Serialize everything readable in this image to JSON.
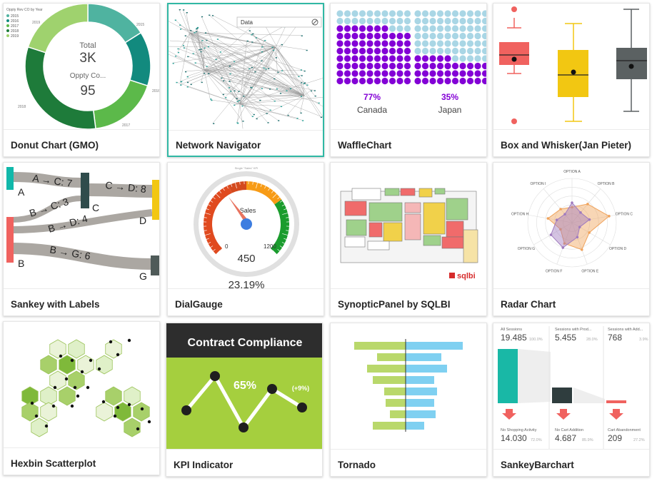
{
  "tiles": [
    {
      "label": "Donut Chart (GMO)"
    },
    {
      "label": "Network Navigator"
    },
    {
      "label": "WaffleChart"
    },
    {
      "label": "Box and Whisker(Jan Pieter)"
    },
    {
      "label": "Sankey with Labels"
    },
    {
      "label": "DialGauge"
    },
    {
      "label": "SynopticPanel by SQLBI"
    },
    {
      "label": "Radar Chart"
    },
    {
      "label": "Hexbin Scatterplot"
    },
    {
      "label": "KPI Indicator"
    },
    {
      "label": "Tornado"
    },
    {
      "label": "SankeyBarchart"
    }
  ],
  "donut": {
    "caption": "Oppty Rev CO by Year",
    "legend": [
      "2015",
      "2016",
      "2017",
      "2018",
      "2019"
    ],
    "outer_labels": [
      "2015",
      "2016",
      "2017",
      "2018",
      "2019"
    ],
    "total_label": "Total",
    "total_value": "3K",
    "sub_label": "Oppty Co...",
    "sub_value": "95",
    "colors": [
      "#4fb3a0",
      "#128a7e",
      "#5cb94a",
      "#1e7b3a",
      "#9fd26e"
    ]
  },
  "network": {
    "search_value": "Data",
    "clear_icon": "clear-icon"
  },
  "waffle": {
    "items": [
      {
        "percent": "77%",
        "country": "Canada",
        "value": 0.77
      },
      {
        "percent": "35%",
        "country": "Japan",
        "value": 0.35
      }
    ],
    "filled_color": "#8300d6",
    "empty_color": "#a9d6e5"
  },
  "box": {
    "colors": [
      "#f0625f",
      "#f2c712",
      "#5b6162"
    ]
  },
  "sankey": {
    "node_labels": [
      "A",
      "B",
      "C",
      "D",
      "G"
    ],
    "flow_labels": [
      "A → C: 7",
      "B → C: 3",
      "C → D: 8",
      "B → D: 4",
      "B → G: 6"
    ]
  },
  "dial": {
    "caption": "Single \"Sales\" KPI",
    "title": "Sales",
    "min": "0",
    "max": "1200",
    "value": "450",
    "percent": "23.19%"
  },
  "synoptic": {
    "brand": "sqlbi"
  },
  "radar": {
    "options": [
      "OPTION A",
      "OPTION B",
      "OPTION C",
      "OPTION D",
      "OPTION E",
      "OPTION F",
      "OPTION G",
      "OPTION H",
      "OPTION I"
    ],
    "series_colors": [
      "#f0a35c",
      "#a07bbf"
    ]
  },
  "kpi": {
    "title": "Contract Compliance",
    "value": "65%",
    "change": "(+9%)"
  },
  "sankeybar": {
    "cells": [
      {
        "label": "All Sessions",
        "value": "19.485",
        "pct": "100.0%"
      },
      {
        "label": "Sessions with Prod...",
        "value": "5.455",
        "pct": "28.0%"
      },
      {
        "label": "Sessions with Add...",
        "value": "768",
        "pct": "3.9%"
      },
      {
        "label": "No Shopping Activity",
        "value": "14.030",
        "pct": "72.0%"
      },
      {
        "label": "No Cart Addition",
        "value": "4.687",
        "pct": "85.9%"
      },
      {
        "label": "Cart Abandonment",
        "value": "209",
        "pct": "27.2%"
      }
    ]
  }
}
